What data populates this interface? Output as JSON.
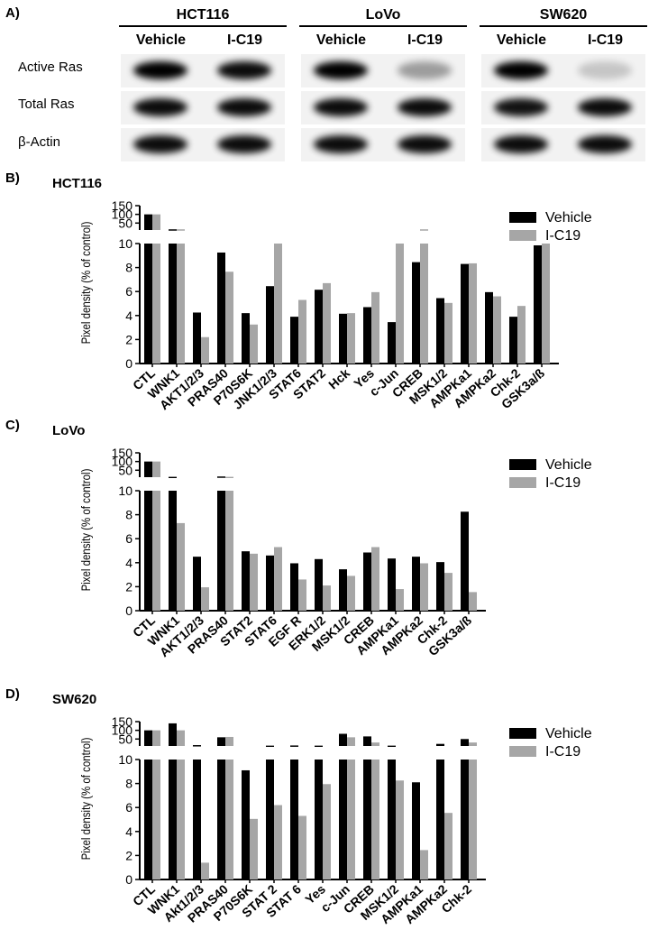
{
  "panel_a": {
    "label": "A)",
    "cell_lines": [
      {
        "name": "HCT116",
        "conditions": [
          "Vehicle",
          "I-C19"
        ]
      },
      {
        "name": "LoVo",
        "conditions": [
          "Vehicle",
          "I-C19"
        ]
      },
      {
        "name": "SW620",
        "conditions": [
          "Vehicle",
          "I-C19"
        ]
      }
    ],
    "rows": [
      "Active Ras",
      "Total Ras",
      "β-Actin"
    ],
    "band_intensity": [
      [
        [
          1.0,
          0.95
        ],
        [
          1.0,
          0.35
        ],
        [
          1.0,
          0.18
        ]
      ],
      [
        [
          0.95,
          0.95
        ],
        [
          0.95,
          0.95
        ],
        [
          0.92,
          0.95
        ]
      ],
      [
        [
          0.95,
          0.95
        ],
        [
          0.95,
          0.95
        ],
        [
          0.95,
          0.95
        ]
      ]
    ]
  },
  "chart_data": [
    {
      "type": "bar",
      "panel_label": "B)",
      "title": "HCT116",
      "ylabel": "Pixel density (% of control)",
      "ylim_lower": [
        0,
        10
      ],
      "yticks_lower": [
        0,
        2,
        4,
        6,
        8,
        10
      ],
      "yticks_upper": [
        50,
        100,
        150
      ],
      "categories": [
        "CTL",
        "WNK1",
        "AKT1/2/3",
        "PRAS40",
        "P70S6K",
        "JNK1/2/3",
        "STAT6",
        "STAT2",
        "Hck",
        "Yes",
        "c-Jun",
        "CREB",
        "MSK1/2",
        "AMPKa1",
        "AMPKa2",
        "Chk-2",
        "GSK3a/ß"
      ],
      "series": [
        {
          "name": "Vehicle",
          "color": "#000000",
          "values": [
            100,
            14,
            4.25,
            9.25,
            4.2,
            6.45,
            3.9,
            6.15,
            4.15,
            4.7,
            3.45,
            8.45,
            5.45,
            8.3,
            5.95,
            3.9,
            9.85
          ]
        },
        {
          "name": "I-C19",
          "color": "#a6a6a6",
          "values": [
            100,
            14,
            2.2,
            7.65,
            3.25,
            10,
            5.3,
            6.7,
            4.2,
            5.95,
            10,
            14,
            5.05,
            8.35,
            5.6,
            4.8,
            10
          ]
        }
      ],
      "legend_position": "right"
    },
    {
      "type": "bar",
      "panel_label": "C)",
      "title": "LoVo",
      "ylabel": "Pixel density (% of control)",
      "ylim_lower": [
        0,
        10
      ],
      "yticks_lower": [
        0,
        2,
        4,
        6,
        8,
        10
      ],
      "yticks_upper": [
        50,
        100,
        150
      ],
      "categories": [
        "CTL",
        "WNK1",
        "AKT1/2/3",
        "PRAS40",
        "STAT2",
        "STAT6",
        "EGF R",
        "ERK1/2",
        "MSK1/2",
        "CREB",
        "AMPKa1",
        "AMPKa2",
        "Chk-2",
        "GSK3a/ß"
      ],
      "series": [
        {
          "name": "Vehicle",
          "color": "#000000",
          "values": [
            100,
            12,
            4.5,
            14,
            4.95,
            4.6,
            3.95,
            4.3,
            3.45,
            4.85,
            4.35,
            4.5,
            4.05,
            8.25
          ]
        },
        {
          "name": "I-C19",
          "color": "#a6a6a6",
          "values": [
            100,
            7.3,
            1.95,
            12,
            4.75,
            5.3,
            2.6,
            2.1,
            2.9,
            5.3,
            1.8,
            3.95,
            3.15,
            1.55
          ]
        }
      ],
      "legend_position": "right"
    },
    {
      "type": "bar",
      "panel_label": "D)",
      "title": "SW620",
      "ylabel": "Pixel density (% of control)",
      "ylim_lower": [
        0,
        10
      ],
      "yticks_lower": [
        0,
        2,
        4,
        6,
        8,
        10
      ],
      "yticks_upper": [
        50,
        100,
        150
      ],
      "categories": [
        "CTL",
        "WNK1",
        "Akt1/2/3",
        "PRAS40",
        "P70S6K",
        "STAT 2",
        "STAT 6",
        "Yes",
        "c-Jun",
        "CREB",
        "MSK1/2",
        "AMPKa1",
        "AMPKa2",
        "Chk-2"
      ],
      "series": [
        {
          "name": "Vehicle",
          "color": "#000000",
          "values": [
            100,
            140,
            15,
            60,
            9.1,
            12,
            13,
            12,
            80,
            65,
            12,
            8.1,
            22,
            50
          ]
        },
        {
          "name": "I-C19",
          "color": "#a6a6a6",
          "values": [
            100,
            100,
            1.4,
            62,
            5.05,
            6.2,
            5.3,
            7.95,
            60,
            30,
            8.25,
            2.45,
            5.55,
            30
          ]
        }
      ],
      "legend_position": "right"
    }
  ]
}
